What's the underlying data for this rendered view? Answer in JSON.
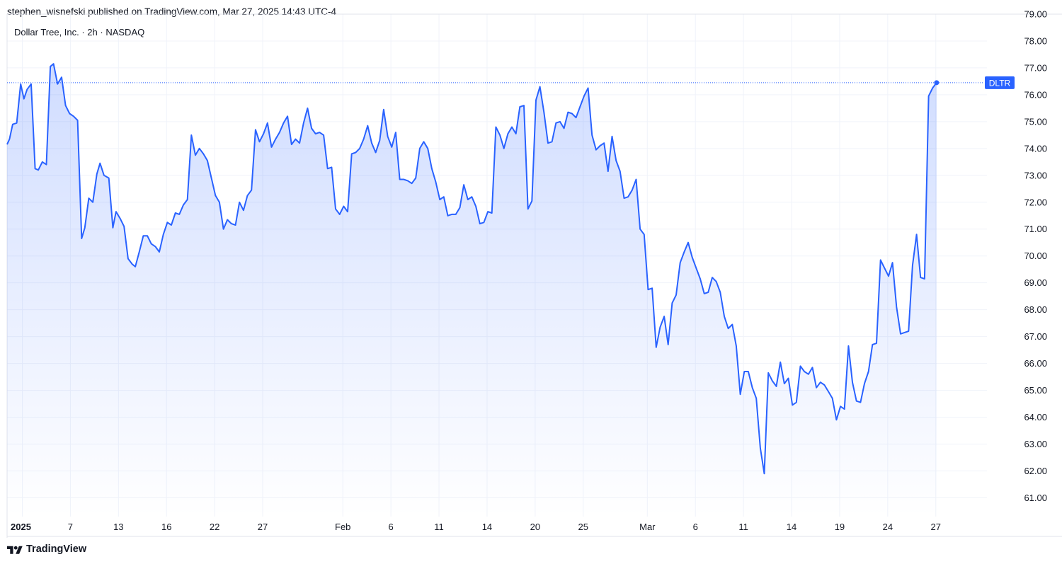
{
  "header": {
    "published_by": "stephen_wisnefski published on TradingView.com, Mar 27, 2025 14:43 UTC-4"
  },
  "footer": {
    "brand": "TradingView",
    "logo_icon": "tradingview-logo-icon"
  },
  "colors": {
    "line": "#2962ff",
    "fill_top": "#2962ff",
    "grid": "#f0f3fa",
    "price_label_bg": "#2962ff"
  },
  "chart_data": {
    "type": "area",
    "title": "Dollar Tree, Inc. · 2h · NASDAQ",
    "symbol_label": "DLTR",
    "last_value": 76.45,
    "ylim": [
      60.3,
      79.0
    ],
    "y_ticks": [
      61,
      62,
      63,
      64,
      65,
      66,
      67,
      68,
      69,
      70,
      71,
      72,
      73,
      74,
      75,
      76,
      77,
      78,
      79
    ],
    "y_tick_labels": [
      "61.00",
      "62.00",
      "63.00",
      "64.00",
      "65.00",
      "66.00",
      "67.00",
      "68.00",
      "69.00",
      "70.00",
      "71.00",
      "72.00",
      "73.00",
      "74.00",
      "75.00",
      "76.00",
      "77.00",
      "78.00",
      "79.00"
    ],
    "x_tick_labels": [
      {
        "label": "2025",
        "x": 1.0,
        "bold": true
      },
      {
        "label": "7",
        "x": 4.0
      },
      {
        "label": "13",
        "x": 7.0
      },
      {
        "label": "16",
        "x": 10.0
      },
      {
        "label": "22",
        "x": 13.0
      },
      {
        "label": "27",
        "x": 16.0
      },
      {
        "label": "Feb",
        "x": 21.0
      },
      {
        "label": "6",
        "x": 24.0
      },
      {
        "label": "11",
        "x": 27.0
      },
      {
        "label": "14",
        "x": 30.0
      },
      {
        "label": "20",
        "x": 33.0
      },
      {
        "label": "25",
        "x": 36.0
      },
      {
        "label": "Mar",
        "x": 40.0
      },
      {
        "label": "6",
        "x": 43.0
      },
      {
        "label": "11",
        "x": 46.0
      },
      {
        "label": "14",
        "x": 49.0
      },
      {
        "label": "19",
        "x": 52.0
      },
      {
        "label": "24",
        "x": 55.0
      },
      {
        "label": "27",
        "x": 58.0
      }
    ],
    "xlim": [
      0.05,
      60.75
    ],
    "series": [
      {
        "values": [
          [
            0.05,
            74.15
          ],
          [
            0.2,
            74.35
          ],
          [
            0.4,
            74.9
          ],
          [
            0.65,
            74.95
          ],
          [
            0.9,
            76.4
          ],
          [
            1.1,
            75.85
          ],
          [
            1.3,
            76.2
          ],
          [
            1.55,
            76.4
          ],
          [
            1.8,
            73.25
          ],
          [
            2.0,
            73.2
          ],
          [
            2.25,
            73.5
          ],
          [
            2.5,
            73.4
          ],
          [
            2.75,
            77.05
          ],
          [
            2.95,
            77.15
          ],
          [
            3.2,
            76.4
          ],
          [
            3.45,
            76.65
          ],
          [
            3.7,
            75.6
          ],
          [
            3.95,
            75.3
          ],
          [
            4.2,
            75.2
          ],
          [
            4.45,
            75.05
          ],
          [
            4.7,
            70.65
          ],
          [
            4.9,
            71.05
          ],
          [
            5.15,
            72.15
          ],
          [
            5.4,
            72.0
          ],
          [
            5.65,
            73.05
          ],
          [
            5.85,
            73.45
          ],
          [
            6.1,
            73.0
          ],
          [
            6.4,
            72.9
          ],
          [
            6.65,
            71.05
          ],
          [
            6.85,
            71.65
          ],
          [
            7.1,
            71.4
          ],
          [
            7.35,
            71.1
          ],
          [
            7.6,
            69.9
          ],
          [
            7.85,
            69.7
          ],
          [
            8.05,
            69.6
          ],
          [
            8.3,
            70.15
          ],
          [
            8.55,
            70.75
          ],
          [
            8.8,
            70.75
          ],
          [
            9.05,
            70.45
          ],
          [
            9.3,
            70.35
          ],
          [
            9.55,
            70.15
          ],
          [
            9.8,
            70.8
          ],
          [
            10.05,
            71.25
          ],
          [
            10.3,
            71.15
          ],
          [
            10.55,
            71.6
          ],
          [
            10.8,
            71.55
          ],
          [
            11.05,
            71.9
          ],
          [
            11.3,
            72.1
          ],
          [
            11.55,
            74.5
          ],
          [
            11.8,
            73.75
          ],
          [
            12.05,
            74.0
          ],
          [
            12.3,
            73.8
          ],
          [
            12.55,
            73.55
          ],
          [
            12.8,
            72.9
          ],
          [
            13.05,
            72.25
          ],
          [
            13.3,
            72.0
          ],
          [
            13.55,
            71.0
          ],
          [
            13.8,
            71.35
          ],
          [
            14.05,
            71.2
          ],
          [
            14.3,
            71.15
          ],
          [
            14.55,
            72.0
          ],
          [
            14.8,
            71.7
          ],
          [
            15.05,
            72.25
          ],
          [
            15.3,
            72.45
          ],
          [
            15.55,
            74.7
          ],
          [
            15.8,
            74.25
          ],
          [
            16.05,
            74.55
          ],
          [
            16.3,
            74.95
          ],
          [
            16.55,
            74.05
          ],
          [
            16.8,
            74.35
          ],
          [
            17.05,
            74.6
          ],
          [
            17.3,
            74.95
          ],
          [
            17.55,
            75.2
          ],
          [
            17.8,
            74.15
          ],
          [
            18.05,
            74.35
          ],
          [
            18.3,
            74.2
          ],
          [
            18.55,
            74.95
          ],
          [
            18.8,
            75.5
          ],
          [
            19.05,
            74.75
          ],
          [
            19.3,
            74.55
          ],
          [
            19.55,
            74.6
          ],
          [
            19.8,
            74.5
          ],
          [
            20.05,
            73.25
          ],
          [
            20.3,
            73.3
          ],
          [
            20.55,
            71.75
          ],
          [
            20.8,
            71.55
          ],
          [
            21.05,
            71.85
          ],
          [
            21.3,
            71.65
          ],
          [
            21.55,
            73.8
          ],
          [
            21.8,
            73.85
          ],
          [
            22.05,
            74.0
          ],
          [
            22.3,
            74.35
          ],
          [
            22.55,
            74.85
          ],
          [
            22.8,
            74.2
          ],
          [
            23.05,
            73.85
          ],
          [
            23.3,
            74.3
          ],
          [
            23.55,
            75.45
          ],
          [
            23.8,
            74.45
          ],
          [
            24.05,
            74.05
          ],
          [
            24.3,
            74.6
          ],
          [
            24.55,
            72.85
          ],
          [
            24.8,
            72.85
          ],
          [
            25.05,
            72.8
          ],
          [
            25.3,
            72.7
          ],
          [
            25.55,
            72.9
          ],
          [
            25.8,
            74.0
          ],
          [
            26.05,
            74.25
          ],
          [
            26.3,
            74.0
          ],
          [
            26.55,
            73.25
          ],
          [
            26.8,
            72.75
          ],
          [
            27.05,
            72.1
          ],
          [
            27.3,
            72.2
          ],
          [
            27.55,
            71.5
          ],
          [
            27.8,
            71.55
          ],
          [
            28.05,
            71.55
          ],
          [
            28.3,
            71.8
          ],
          [
            28.55,
            72.65
          ],
          [
            28.8,
            72.1
          ],
          [
            29.05,
            72.2
          ],
          [
            29.3,
            71.85
          ],
          [
            29.55,
            71.2
          ],
          [
            29.8,
            71.25
          ],
          [
            30.05,
            71.65
          ],
          [
            30.3,
            71.6
          ],
          [
            30.55,
            74.8
          ],
          [
            30.8,
            74.5
          ],
          [
            31.05,
            74.0
          ],
          [
            31.3,
            74.55
          ],
          [
            31.55,
            74.8
          ],
          [
            31.8,
            74.55
          ],
          [
            32.05,
            75.55
          ],
          [
            32.3,
            75.6
          ],
          [
            32.55,
            71.75
          ],
          [
            32.8,
            72.05
          ],
          [
            33.05,
            75.8
          ],
          [
            33.3,
            76.3
          ],
          [
            33.55,
            75.35
          ],
          [
            33.8,
            74.2
          ],
          [
            34.05,
            74.25
          ],
          [
            34.3,
            74.95
          ],
          [
            34.55,
            75.0
          ],
          [
            34.8,
            74.75
          ],
          [
            35.05,
            75.35
          ],
          [
            35.3,
            75.3
          ],
          [
            35.55,
            75.15
          ],
          [
            35.8,
            75.55
          ],
          [
            36.05,
            75.95
          ],
          [
            36.3,
            76.25
          ],
          [
            36.55,
            74.5
          ],
          [
            36.8,
            73.95
          ],
          [
            37.05,
            74.1
          ],
          [
            37.3,
            74.2
          ],
          [
            37.55,
            73.15
          ],
          [
            37.8,
            74.45
          ],
          [
            38.05,
            73.55
          ],
          [
            38.3,
            73.15
          ],
          [
            38.55,
            72.15
          ],
          [
            38.8,
            72.2
          ],
          [
            39.05,
            72.45
          ],
          [
            39.3,
            72.85
          ],
          [
            39.55,
            71.0
          ],
          [
            39.8,
            70.8
          ],
          [
            40.05,
            68.75
          ],
          [
            40.3,
            68.8
          ],
          [
            40.55,
            66.6
          ],
          [
            40.8,
            67.35
          ],
          [
            41.05,
            67.75
          ],
          [
            41.3,
            66.7
          ],
          [
            41.55,
            68.25
          ],
          [
            41.8,
            68.55
          ],
          [
            42.05,
            69.75
          ],
          [
            42.3,
            70.15
          ],
          [
            42.55,
            70.5
          ],
          [
            42.8,
            69.95
          ],
          [
            43.05,
            69.55
          ],
          [
            43.3,
            69.15
          ],
          [
            43.55,
            68.6
          ],
          [
            43.8,
            68.65
          ],
          [
            44.05,
            69.2
          ],
          [
            44.3,
            69.05
          ],
          [
            44.55,
            68.65
          ],
          [
            44.8,
            67.75
          ],
          [
            45.05,
            67.3
          ],
          [
            45.3,
            67.45
          ],
          [
            45.55,
            66.65
          ],
          [
            45.8,
            64.85
          ],
          [
            46.05,
            65.7
          ],
          [
            46.3,
            65.7
          ],
          [
            46.55,
            65.1
          ],
          [
            46.8,
            64.7
          ],
          [
            47.05,
            62.85
          ],
          [
            47.3,
            61.9
          ],
          [
            47.55,
            65.65
          ],
          [
            47.8,
            65.35
          ],
          [
            48.05,
            65.15
          ],
          [
            48.3,
            66.05
          ],
          [
            48.55,
            65.25
          ],
          [
            48.8,
            65.45
          ],
          [
            49.05,
            64.45
          ],
          [
            49.3,
            64.55
          ],
          [
            49.55,
            65.9
          ],
          [
            49.8,
            65.7
          ],
          [
            50.05,
            65.6
          ],
          [
            50.3,
            65.85
          ],
          [
            50.55,
            65.1
          ],
          [
            50.8,
            65.3
          ],
          [
            51.05,
            65.2
          ],
          [
            51.3,
            64.95
          ],
          [
            51.55,
            64.7
          ],
          [
            51.8,
            63.9
          ],
          [
            52.05,
            64.4
          ],
          [
            52.3,
            64.3
          ],
          [
            52.55,
            66.65
          ],
          [
            52.8,
            65.3
          ],
          [
            53.05,
            64.6
          ],
          [
            53.3,
            64.55
          ],
          [
            53.55,
            65.25
          ],
          [
            53.8,
            65.7
          ],
          [
            54.05,
            66.7
          ],
          [
            54.3,
            66.75
          ],
          [
            54.55,
            69.85
          ],
          [
            54.8,
            69.55
          ],
          [
            55.05,
            69.25
          ],
          [
            55.3,
            69.75
          ],
          [
            55.55,
            68.1
          ],
          [
            55.8,
            67.1
          ],
          [
            56.05,
            67.15
          ],
          [
            56.3,
            67.2
          ],
          [
            56.55,
            69.65
          ],
          [
            56.8,
            70.8
          ],
          [
            57.05,
            69.2
          ],
          [
            57.3,
            69.15
          ],
          [
            57.55,
            75.95
          ],
          [
            57.8,
            76.25
          ],
          [
            58.05,
            76.45
          ]
        ]
      }
    ]
  }
}
